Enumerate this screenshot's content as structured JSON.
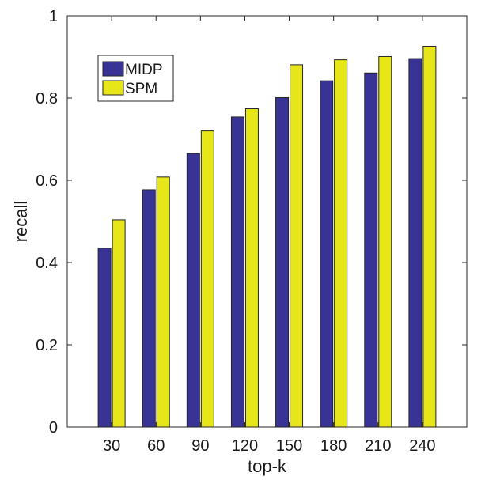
{
  "chart_data": {
    "type": "bar",
    "title": "",
    "xlabel": "top-k",
    "ylabel": "recall",
    "categories": [
      "30",
      "60",
      "90",
      "120",
      "150",
      "180",
      "210",
      "240"
    ],
    "series": [
      {
        "name": "MIDP",
        "color": "#3a3396",
        "values": [
          0.435,
          0.577,
          0.665,
          0.754,
          0.801,
          0.842,
          0.861,
          0.896
        ]
      },
      {
        "name": "SPM",
        "color": "#e6e619",
        "values": [
          0.504,
          0.608,
          0.72,
          0.774,
          0.881,
          0.893,
          0.901,
          0.926
        ]
      }
    ],
    "ylim": [
      0,
      1
    ],
    "yticks": [
      "0",
      "0.2",
      "0.4",
      "0.6",
      "0.8",
      "1"
    ],
    "grid": false,
    "legend_position": "top-left"
  }
}
